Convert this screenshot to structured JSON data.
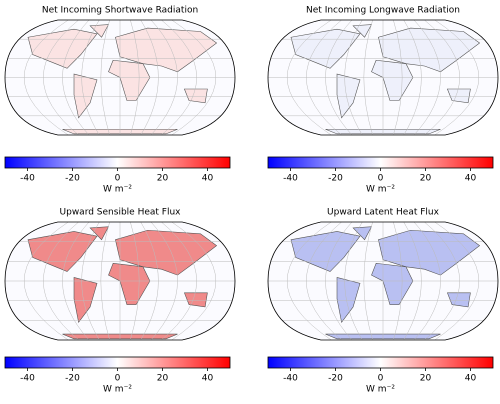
{
  "chart_data": [
    {
      "type": "map",
      "title": "Net Incoming Shortwave Radiation",
      "land_color": "#fbe3e3",
      "colorbar": {
        "label": "W m⁻²",
        "lim": [
          -50,
          50
        ],
        "ticks": [
          -40,
          -20,
          0,
          20,
          40
        ],
        "colors": [
          "#0000ff",
          "#ffffff",
          "#ff0000"
        ]
      }
    },
    {
      "type": "map",
      "title": "Net Incoming Longwave Radiation",
      "land_color": "#eef0fb",
      "colorbar": {
        "label": "W m⁻²",
        "lim": [
          -50,
          50
        ],
        "ticks": [
          -40,
          -20,
          0,
          20,
          40
        ],
        "colors": [
          "#0000ff",
          "#ffffff",
          "#ff0000"
        ]
      }
    },
    {
      "type": "map",
      "title": "Upward Sensible Heat Flux",
      "land_color": "#f08a8a",
      "colorbar": {
        "label": "W m⁻²",
        "lim": [
          -50,
          50
        ],
        "ticks": [
          -40,
          -20,
          0,
          20,
          40
        ],
        "colors": [
          "#0000ff",
          "#ffffff",
          "#ff0000"
        ]
      }
    },
    {
      "type": "map",
      "title": "Upward Latent Heat Flux",
      "land_color": "#b9c0f2",
      "colorbar": {
        "label": "W m⁻²",
        "lim": [
          -50,
          50
        ],
        "ticks": [
          -40,
          -20,
          0,
          20,
          40
        ],
        "colors": [
          "#0000ff",
          "#ffffff",
          "#ff0000"
        ]
      }
    }
  ]
}
